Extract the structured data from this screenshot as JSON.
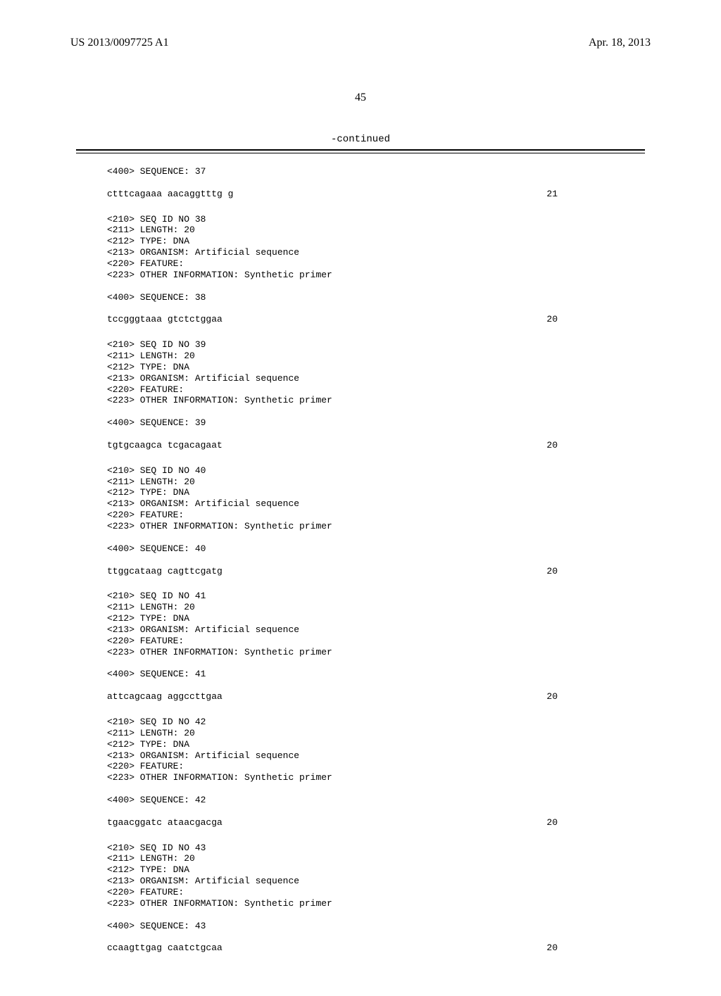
{
  "header": {
    "pub_number": "US 2013/0097725 A1",
    "pub_date": "Apr. 18, 2013"
  },
  "page_number": "45",
  "continued_label": "-continued",
  "entries": [
    {
      "pre_lines": [
        "<400> SEQUENCE: 37"
      ],
      "sequence": "ctttcagaaa aacaggtttg g",
      "length": "21"
    },
    {
      "pre_lines": [
        "<210> SEQ ID NO 38",
        "<211> LENGTH: 20",
        "<212> TYPE: DNA",
        "<213> ORGANISM: Artificial sequence",
        "<220> FEATURE:",
        "<223> OTHER INFORMATION: Synthetic primer",
        "",
        "<400> SEQUENCE: 38"
      ],
      "sequence": "tccgggtaaa gtctctggaa",
      "length": "20"
    },
    {
      "pre_lines": [
        "<210> SEQ ID NO 39",
        "<211> LENGTH: 20",
        "<212> TYPE: DNA",
        "<213> ORGANISM: Artificial sequence",
        "<220> FEATURE:",
        "<223> OTHER INFORMATION: Synthetic primer",
        "",
        "<400> SEQUENCE: 39"
      ],
      "sequence": "tgtgcaagca tcgacagaat",
      "length": "20"
    },
    {
      "pre_lines": [
        "<210> SEQ ID NO 40",
        "<211> LENGTH: 20",
        "<212> TYPE: DNA",
        "<213> ORGANISM: Artificial sequence",
        "<220> FEATURE:",
        "<223> OTHER INFORMATION: Synthetic primer",
        "",
        "<400> SEQUENCE: 40"
      ],
      "sequence": "ttggcataag cagttcgatg",
      "length": "20"
    },
    {
      "pre_lines": [
        "<210> SEQ ID NO 41",
        "<211> LENGTH: 20",
        "<212> TYPE: DNA",
        "<213> ORGANISM: Artificial sequence",
        "<220> FEATURE:",
        "<223> OTHER INFORMATION: Synthetic primer",
        "",
        "<400> SEQUENCE: 41"
      ],
      "sequence": "attcagcaag aggccttgaa",
      "length": "20"
    },
    {
      "pre_lines": [
        "<210> SEQ ID NO 42",
        "<211> LENGTH: 20",
        "<212> TYPE: DNA",
        "<213> ORGANISM: Artificial sequence",
        "<220> FEATURE:",
        "<223> OTHER INFORMATION: Synthetic primer",
        "",
        "<400> SEQUENCE: 42"
      ],
      "sequence": "tgaacggatc ataacgacga",
      "length": "20"
    },
    {
      "pre_lines": [
        "<210> SEQ ID NO 43",
        "<211> LENGTH: 20",
        "<212> TYPE: DNA",
        "<213> ORGANISM: Artificial sequence",
        "<220> FEATURE:",
        "<223> OTHER INFORMATION: Synthetic primer",
        "",
        "<400> SEQUENCE: 43"
      ],
      "sequence": "ccaagttgag caatctgcaa",
      "length": "20"
    }
  ]
}
